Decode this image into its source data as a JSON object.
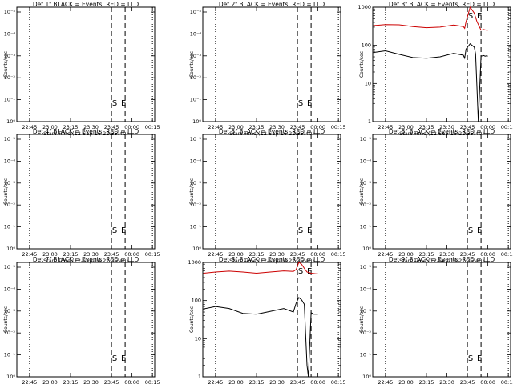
{
  "figure": {
    "xticks": [
      "22:45",
      "23:00",
      "23:15",
      "23:30",
      "23:45",
      "00:00",
      "00:15"
    ],
    "xlabel": "Start Time (12-Sep-16 22:35:40)",
    "ylabel": "Counts/sec",
    "colors": {
      "events": "#000000",
      "lld": "#cc0000",
      "axes": "#000000"
    },
    "markers": {
      "start": "S",
      "end": "E"
    }
  },
  "chart_data": [
    {
      "id": "p1",
      "type": "line",
      "title": "Det 1f BLACK = Events, RED = LLD",
      "yscale": "log-exponent",
      "yticks": [
        "10⁰",
        "10⁻¹",
        "10⁻²",
        "10⁻³",
        "10⁻⁴",
        "10⁻⁵"
      ],
      "series": []
    },
    {
      "id": "p2",
      "type": "line",
      "title": "Det 2f BLACK = Events, RED = LLD",
      "yscale": "log-exponent",
      "yticks": [
        "10⁰",
        "10⁻¹",
        "10⁻²",
        "10⁻³",
        "10⁻⁴",
        "10⁻⁵"
      ],
      "series": []
    },
    {
      "id": "p3",
      "type": "line",
      "title": "Det 3f BLACK = Events, RED = LLD",
      "yscale": "log",
      "yticks": [
        "1",
        "10",
        "100",
        "1000"
      ],
      "ylim": [
        1,
        1000
      ],
      "series": [
        {
          "color": "#cc0000",
          "x": [
            "22:36",
            "22:45",
            "22:55",
            "23:05",
            "23:15",
            "23:25",
            "23:35",
            "23:42",
            "23:43",
            "23:44",
            "23:47",
            "23:50",
            "23:52",
            "23:55",
            "23:57",
            "23:58",
            "23:59",
            "00:00"
          ],
          "y": [
            330,
            350,
            345,
            310,
            290,
            300,
            340,
            310,
            280,
            420,
            1000,
            700,
            420,
            250,
            260,
            255,
            250,
            250
          ]
        },
        {
          "color": "#000000",
          "x": [
            "22:36",
            "22:45",
            "22:55",
            "23:05",
            "23:15",
            "23:25",
            "23:35",
            "23:42",
            "23:43",
            "23:44",
            "23:47",
            "23:50",
            "23:51",
            "23:52",
            "23:53",
            "23:55",
            "23:57",
            "23:58",
            "23:59",
            "00:00"
          ],
          "y": [
            65,
            72,
            58,
            48,
            46,
            50,
            62,
            55,
            46,
            80,
            110,
            90,
            60,
            8,
            1,
            52,
            54,
            52,
            53,
            52
          ]
        }
      ]
    },
    {
      "id": "p4",
      "type": "line",
      "title": "Det 4f BLACK = Events, RED = LLD",
      "yscale": "log-exponent",
      "yticks": [
        "10⁰",
        "10⁻¹",
        "10⁻²",
        "10⁻³",
        "10⁻⁴",
        "10⁻⁵"
      ],
      "series": []
    },
    {
      "id": "p5",
      "type": "line",
      "title": "Det 5f BLACK = Events, RED = LLD",
      "yscale": "log-exponent",
      "yticks": [
        "10⁰",
        "10⁻¹",
        "10⁻²",
        "10⁻³",
        "10⁻⁴",
        "10⁻⁵"
      ],
      "series": []
    },
    {
      "id": "p6",
      "type": "line",
      "title": "Det 6f BLACK = Events, RED = LLD",
      "yscale": "log-exponent",
      "yticks": [
        "10⁰",
        "10⁻¹",
        "10⁻²",
        "10⁻³",
        "10⁻⁴",
        "10⁻⁵"
      ],
      "series": []
    },
    {
      "id": "p7",
      "type": "line",
      "title": "Det 7f BLACK = Events, RED = LLD",
      "yscale": "log-exponent",
      "yticks": [
        "10⁰",
        "10⁻¹",
        "10⁻²",
        "10⁻³",
        "10⁻⁴",
        "10⁻⁵"
      ],
      "series": []
    },
    {
      "id": "p8",
      "type": "line",
      "title": "Det 8f BLACK = Events, RED = LLD",
      "yscale": "log",
      "yticks": [
        "1",
        "10",
        "100",
        "1000"
      ],
      "ylim": [
        1,
        1000
      ],
      "series": [
        {
          "color": "#cc0000",
          "x": [
            "22:36",
            "22:45",
            "22:55",
            "23:05",
            "23:15",
            "23:25",
            "23:35",
            "23:42",
            "23:44",
            "23:46",
            "23:48",
            "23:50",
            "23:52",
            "23:55",
            "23:57",
            "23:58",
            "23:59",
            "00:00"
          ],
          "y": [
            520,
            560,
            590,
            560,
            520,
            560,
            600,
            580,
            650,
            1000,
            900,
            700,
            560,
            520,
            510,
            505,
            500,
            500
          ]
        },
        {
          "color": "#000000",
          "x": [
            "22:36",
            "22:45",
            "22:55",
            "23:05",
            "23:15",
            "23:25",
            "23:35",
            "23:42",
            "23:44",
            "23:46",
            "23:48",
            "23:50",
            "23:52",
            "23:53",
            "23:55",
            "23:57",
            "23:58",
            "23:59",
            "00:00"
          ],
          "y": [
            60,
            70,
            62,
            46,
            44,
            52,
            62,
            50,
            85,
            120,
            105,
            80,
            2,
            1,
            48,
            44,
            44,
            44,
            44
          ]
        }
      ]
    },
    {
      "id": "p9",
      "type": "line",
      "title": "Det 9f BLACK = Events, RED = LLD",
      "yscale": "log-exponent",
      "yticks": [
        "10⁰",
        "10⁻¹",
        "10⁻²",
        "10⁻³",
        "10⁻⁴",
        "10⁻⁵"
      ],
      "series": []
    }
  ]
}
